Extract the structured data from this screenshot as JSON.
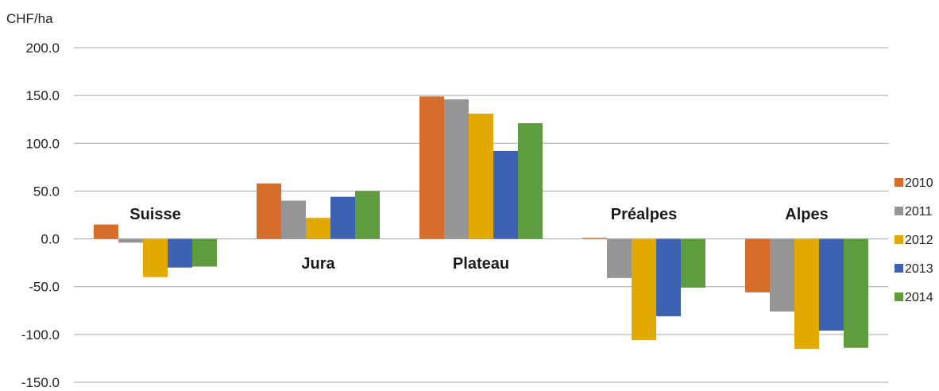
{
  "chart_data": {
    "type": "bar",
    "ylabel": "CHF/ha",
    "ylim": [
      -150,
      200
    ],
    "ytick_step": 50,
    "ytick_labels": [
      "200.0",
      "150.0",
      "100.0",
      "50.0",
      "0.0",
      "-50.0",
      "-100.0",
      "-150.0"
    ],
    "grid": true,
    "legend_position": "right",
    "categories": [
      "Suisse",
      "Jura",
      "Plateau",
      "Préalpes",
      "Alpes"
    ],
    "series": [
      {
        "name": "2010",
        "color": "#d46e2a",
        "values": [
          15,
          58,
          149,
          1,
          -56
        ]
      },
      {
        "name": "2011",
        "color": "#969696",
        "values": [
          -4,
          40,
          146,
          -41,
          -76
        ]
      },
      {
        "name": "2012",
        "color": "#e2aa00",
        "values": [
          -40,
          22,
          131,
          -106,
          -115
        ]
      },
      {
        "name": "2013",
        "color": "#3c62b1",
        "values": [
          -30,
          44,
          92,
          -81,
          -96
        ]
      },
      {
        "name": "2014",
        "color": "#5f9b3f",
        "values": [
          -29,
          50,
          121,
          -51,
          -114
        ]
      }
    ]
  }
}
